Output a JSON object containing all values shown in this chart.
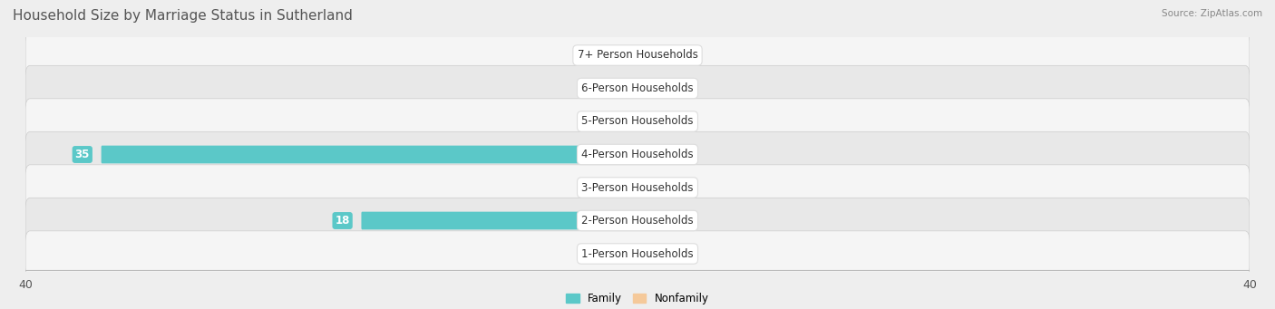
{
  "title": "Household Size by Marriage Status in Sutherland",
  "source": "Source: ZipAtlas.com",
  "categories": [
    "7+ Person Households",
    "6-Person Households",
    "5-Person Households",
    "4-Person Households",
    "3-Person Households",
    "2-Person Households",
    "1-Person Households"
  ],
  "family_values": [
    0,
    0,
    0,
    35,
    0,
    18,
    0
  ],
  "nonfamily_values": [
    0,
    0,
    0,
    0,
    0,
    0,
    0
  ],
  "family_color": "#5BC8C8",
  "nonfamily_color": "#F5C99A",
  "zero_stub": 2.5,
  "xlim": 40,
  "background_color": "#eeeeee",
  "row_light": "#f5f5f5",
  "row_dark": "#e8e8e8",
  "title_fontsize": 11,
  "label_fontsize": 8.5,
  "tick_fontsize": 9,
  "value_label_fontsize": 8.5
}
